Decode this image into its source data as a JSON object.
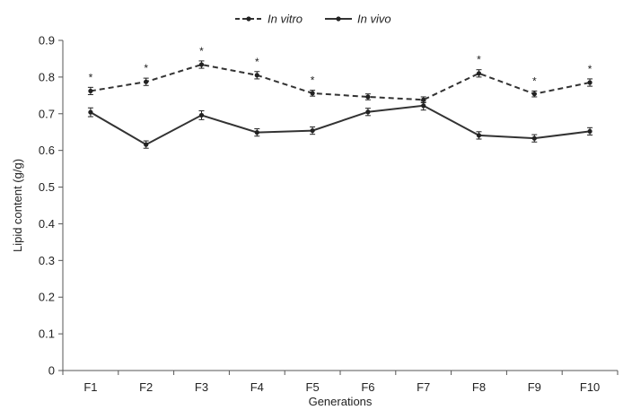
{
  "chart_data": {
    "type": "line",
    "xlabel": "Generations",
    "ylabel": "Lipid content (g/g)",
    "categories": [
      "F1",
      "F2",
      "F3",
      "F4",
      "F5",
      "F6",
      "F7",
      "F8",
      "F9",
      "F10"
    ],
    "ylim": [
      0,
      0.9
    ],
    "yticks": [
      "0",
      "0.1",
      "0.2",
      "0.3",
      "0.4",
      "0.5",
      "0.6",
      "0.7",
      "0.8",
      "0.9"
    ],
    "grid": false,
    "legend_position": "top-center",
    "series": [
      {
        "name": "In vitro",
        "line_style": "dashed",
        "color": "#333333",
        "values": [
          0.762,
          0.787,
          0.834,
          0.805,
          0.756,
          0.746,
          0.738,
          0.81,
          0.754,
          0.785
        ],
        "errors": [
          0.01,
          0.01,
          0.01,
          0.01,
          0.008,
          0.008,
          0.008,
          0.01,
          0.008,
          0.01
        ]
      },
      {
        "name": "In vivo",
        "line_style": "solid",
        "color": "#333333",
        "values": [
          0.704,
          0.616,
          0.696,
          0.649,
          0.654,
          0.705,
          0.722,
          0.641,
          0.633,
          0.652
        ],
        "errors": [
          0.012,
          0.01,
          0.012,
          0.01,
          0.01,
          0.01,
          0.012,
          0.01,
          0.01,
          0.01
        ]
      }
    ],
    "significance": {
      "symbol": "*",
      "categories": [
        "F1",
        "F2",
        "F3",
        "F4",
        "F5",
        "F8",
        "F9",
        "F10"
      ]
    }
  }
}
